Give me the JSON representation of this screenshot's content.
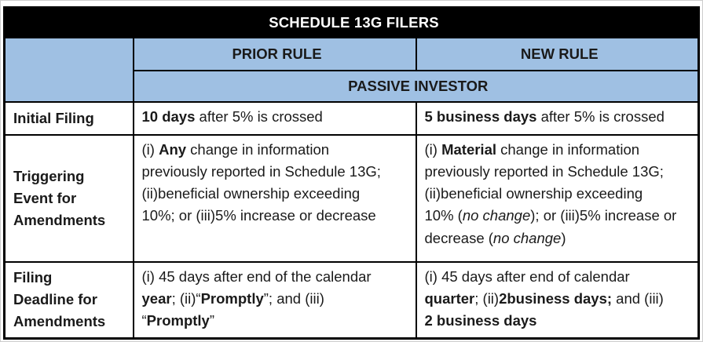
{
  "title": "SCHEDULE 13G FILERS",
  "header": {
    "col_prior": "PRIOR RULE",
    "col_new": "NEW RULE",
    "subheader": "PASSIVE INVESTOR"
  },
  "colors": {
    "title_bg": "#000000",
    "title_text": "#FFFFFF",
    "header_bg": "#9FC0E3",
    "border": "#000000",
    "text": "#1A1A1A",
    "page_bg": "#FFFFFF"
  },
  "rows": [
    {
      "label": "Initial Filing",
      "prior": [
        {
          "t": "10 days",
          "b": true
        },
        {
          "t": " after 5% is crossed"
        }
      ],
      "new": [
        {
          "t": "5 business days",
          "b": true
        },
        {
          "t": " after 5% is crossed"
        }
      ]
    },
    {
      "label": "Triggering\nEvent for\nAmendments",
      "prior": [
        {
          "t": "(i) "
        },
        {
          "t": "Any",
          "b": true
        },
        {
          "t": " change in information\npreviously reported in Schedule 13G;\n(ii)beneficial ownership exceeding\n10%; or (iii)5% increase or decrease"
        }
      ],
      "new": [
        {
          "t": "(i) "
        },
        {
          "t": "Material",
          "b": true
        },
        {
          "t": " change in information\npreviously reported in Schedule 13G;\n(ii)beneficial ownership exceeding\n10% ("
        },
        {
          "t": "no change",
          "i": true
        },
        {
          "t": "); or (iii)5% increase or\ndecrease ("
        },
        {
          "t": "no change",
          "i": true
        },
        {
          "t": ")"
        }
      ]
    },
    {
      "label": "Filing\nDeadline for\nAmendments",
      "prior": [
        {
          "t": "(i) 45 days after end of the calendar\n"
        },
        {
          "t": "year",
          "b": true
        },
        {
          "t": "; (ii)“"
        },
        {
          "t": "Promptly",
          "b": true
        },
        {
          "t": "”; and (iii)\n“"
        },
        {
          "t": "Promptly",
          "b": true
        },
        {
          "t": "”"
        }
      ],
      "new": [
        {
          "t": "(i) 45 days after end of calendar\n"
        },
        {
          "t": "quarter",
          "b": true
        },
        {
          "t": "; (ii)"
        },
        {
          "t": "2business days;",
          "b": true
        },
        {
          "t": " and (iii)\n"
        },
        {
          "t": "2 business days",
          "b": true
        }
      ]
    }
  ]
}
